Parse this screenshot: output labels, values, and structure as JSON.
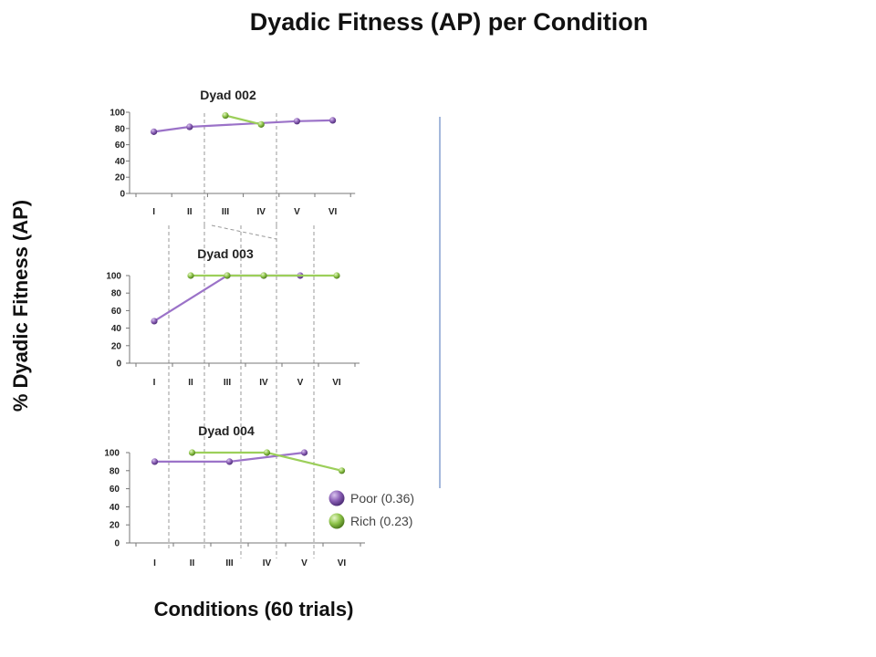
{
  "title": "Dyadic Fitness (AP) per Condition",
  "ylabel": "% Dyadic Fitness (AP)",
  "xlabel": "Conditions (60 trials)",
  "colors": {
    "poor": "#8a5fb5",
    "poor_line": "#9b72c8",
    "rich": "#8ec44a",
    "rich_line": "#9ccf5a",
    "axis": "#777777",
    "divider": "#4a72b8",
    "guide": "#999999"
  },
  "legend": {
    "poor_label": "Poor (0.36)",
    "rich_label": "Rich (0.23)"
  },
  "chart_data": [
    {
      "type": "line",
      "title": "Dyad 002",
      "categories": [
        "I",
        "II",
        "III",
        "IV",
        "V",
        "VI"
      ],
      "ylim": [
        0,
        100
      ],
      "yticks": [
        0,
        20,
        40,
        60,
        80,
        100
      ],
      "series": [
        {
          "name": "Poor (0.36)",
          "color": "#8a5fb5",
          "segments": [
            [
              [
                "I",
                76
              ],
              [
                "II",
                82
              ]
            ],
            [
              [
                "II",
                82
              ],
              [
                "V",
                89
              ],
              [
                "VI",
                90
              ]
            ]
          ]
        },
        {
          "name": "Rich (0.23)",
          "color": "#8ec44a",
          "segments": [
            [
              [
                "III",
                96
              ],
              [
                "IV",
                85
              ]
            ]
          ]
        }
      ]
    },
    {
      "type": "line",
      "title": "Dyad 003",
      "categories": [
        "I",
        "II",
        "III",
        "IV",
        "V",
        "VI"
      ],
      "ylim": [
        0,
        100
      ],
      "yticks": [
        0,
        20,
        40,
        60,
        80,
        100
      ],
      "series": [
        {
          "name": "Poor (0.36)",
          "color": "#8a5fb5",
          "segments": [
            [
              [
                "I",
                48
              ],
              [
                "III",
                100
              ],
              [
                "IV",
                100
              ],
              [
                "V",
                100
              ]
            ]
          ]
        },
        {
          "name": "Rich (0.23)",
          "color": "#8ec44a",
          "segments": [
            [
              [
                "II",
                100
              ],
              [
                "III",
                100
              ],
              [
                "IV",
                100
              ],
              [
                "VI",
                100
              ]
            ]
          ]
        }
      ]
    },
    {
      "type": "line",
      "title": "Dyad 004",
      "categories": [
        "I",
        "II",
        "III",
        "IV",
        "V",
        "VI"
      ],
      "ylim": [
        0,
        100
      ],
      "yticks": [
        0,
        20,
        40,
        60,
        80,
        100
      ],
      "series": [
        {
          "name": "Poor (0.36)",
          "color": "#8a5fb5",
          "segments": [
            [
              [
                "I",
                90
              ],
              [
                "III",
                90
              ],
              [
                "V",
                100
              ]
            ]
          ]
        },
        {
          "name": "Rich (0.23)",
          "color": "#8ec44a",
          "segments": [
            [
              [
                "II",
                100
              ],
              [
                "IV",
                100
              ],
              [
                "VI",
                80
              ]
            ]
          ]
        }
      ]
    }
  ]
}
